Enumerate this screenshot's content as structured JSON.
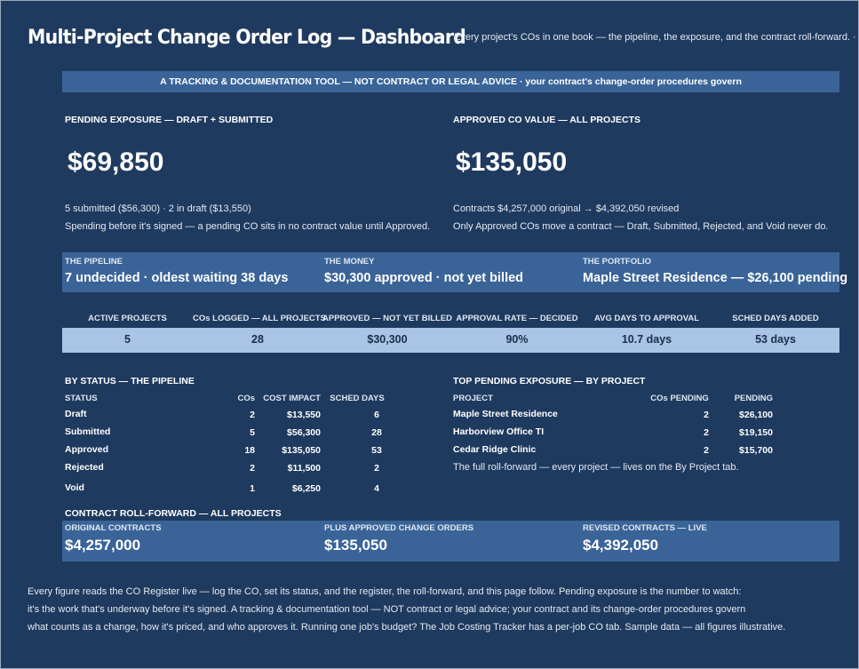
{
  "header": {
    "title": "Multi-Project Change Order Log — Dashboard",
    "subtitle": "Every project's COs in one book — the pipeline, the exposure, and the contract roll-forward.  ·  qu"
  },
  "banner": "A TRACKING & DOCUMENTATION TOOL — NOT CONTRACT OR LEGAL ADVICE  ·  your contract's change-order procedures govern",
  "pending": {
    "label": "PENDING EXPOSURE — DRAFT + SUBMITTED",
    "value": "$69,850",
    "note1": "5 submitted ($56,300)  ·  2 in draft ($13,550)",
    "note2": "Spending before it's signed — a pending CO sits in no contract value until Approved."
  },
  "approved": {
    "label": "APPROVED CO VALUE — ALL PROJECTS",
    "value": "$135,050",
    "note1": "Contracts $4,257,000 original → $4,392,050 revised",
    "note2": "Only Approved COs move a contract — Draft, Submitted, Rejected, and Void never do."
  },
  "summary_panel": {
    "pipeline_caption": "THE PIPELINE",
    "pipeline_value": "7 undecided · oldest waiting 38 days",
    "money_caption": "THE MONEY",
    "money_value": "$30,300 approved · not yet billed",
    "portfolio_caption": "THE PORTFOLIO",
    "portfolio_value": "Maple Street Residence — $26,100 pending"
  },
  "kpis": [
    {
      "label": "ACTIVE PROJECTS",
      "value": "5"
    },
    {
      "label": "COs LOGGED — ALL PROJECTS",
      "value": "28"
    },
    {
      "label": "APPROVED — NOT YET BILLED",
      "value": "$30,300"
    },
    {
      "label": "APPROVAL RATE — DECIDED",
      "value": "90%"
    },
    {
      "label": "AVG DAYS TO APPROVAL",
      "value": "10.7 days"
    },
    {
      "label": "SCHED DAYS ADDED",
      "value": "53 days"
    }
  ],
  "by_status": {
    "title": "BY STATUS — THE PIPELINE",
    "headers": {
      "status": "STATUS",
      "cos": "COs",
      "cost": "COST IMPACT",
      "sched": "SCHED DAYS"
    },
    "rows": [
      {
        "status": "Draft",
        "cos": "2",
        "cost": "$13,550",
        "sched": "6"
      },
      {
        "status": "Submitted",
        "cos": "5",
        "cost": "$56,300",
        "sched": "28"
      },
      {
        "status": "Approved",
        "cos": "18",
        "cost": "$135,050",
        "sched": "53"
      },
      {
        "status": "Rejected",
        "cos": "2",
        "cost": "$11,500",
        "sched": "2"
      },
      {
        "status": "Void",
        "cos": "1",
        "cost": "$6,250",
        "sched": "4"
      }
    ]
  },
  "top_pending": {
    "title": "TOP PENDING EXPOSURE — BY PROJECT",
    "headers": {
      "project": "PROJECT",
      "cos": "COs PENDING",
      "pending": "PENDING"
    },
    "rows": [
      {
        "project": "Maple Street Residence",
        "cos": "2",
        "pending": "$26,100"
      },
      {
        "project": "Harborview Office TI",
        "cos": "2",
        "pending": "$19,150"
      },
      {
        "project": "Cedar Ridge Clinic",
        "cos": "2",
        "pending": "$15,700"
      }
    ],
    "note": "The full roll-forward — every project — lives on the By Project tab."
  },
  "rollforward": {
    "title": "CONTRACT ROLL-FORWARD — ALL PROJECTS",
    "original_caption": "ORIGINAL CONTRACTS",
    "original_value": "$4,257,000",
    "plus_caption": "PLUS APPROVED CHANGE ORDERS",
    "plus_value": "$135,050",
    "revised_caption": "REVISED CONTRACTS — LIVE",
    "revised_value": "$4,392,050"
  },
  "footer": {
    "line1": "Every figure reads the CO Register live — log the CO, set its status, and the register, the roll-forward, and this page follow. Pending exposure is the number to watch:",
    "line2": "it's the work that's underway before it's signed. A tracking & documentation tool — NOT contract or legal advice; your contract and its change-order procedures govern",
    "line3": "what counts as a change, how it's priced, and who approves it. Running one job's budget? The Job Costing Tracker has a per-job CO tab. Sample data — all figures illustrative."
  },
  "colors": {
    "background": "#1f3a5f",
    "panel": "#3a6497",
    "kpi_band": "#a9c4e4",
    "text": "#ffffff"
  }
}
